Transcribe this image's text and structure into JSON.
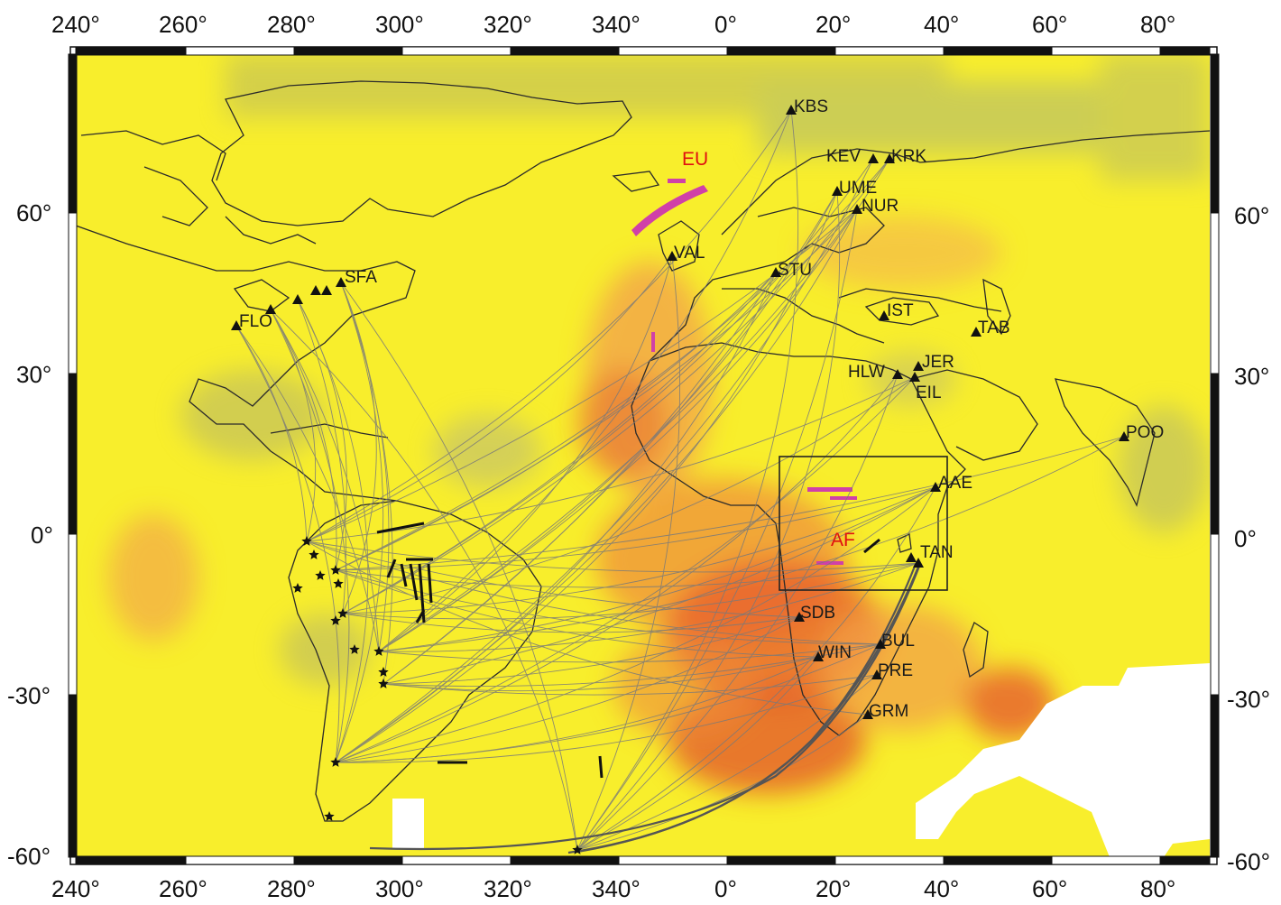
{
  "axes": {
    "top_ticks": [
      "240°",
      "260°",
      "280°",
      "300°",
      "320°",
      "340°",
      "0°",
      "20°",
      "40°",
      "60°",
      "80°"
    ],
    "bottom_ticks": [
      "240°",
      "260°",
      "280°",
      "300°",
      "320°",
      "340°",
      "0°",
      "20°",
      "40°",
      "60°",
      "80°"
    ],
    "left_ticks": [
      "60°",
      "30°",
      "0°",
      "-30°",
      "-60°"
    ],
    "right_ticks": [
      "60°",
      "30°",
      "0°",
      "-30°",
      "-60°"
    ]
  },
  "regions": {
    "eu_label": "EU",
    "af_label": "AF"
  },
  "stations": [
    {
      "code": "KBS"
    },
    {
      "code": "KEV"
    },
    {
      "code": "KRK"
    },
    {
      "code": "UME"
    },
    {
      "code": "NUR"
    },
    {
      "code": "VAL"
    },
    {
      "code": "STU"
    },
    {
      "code": "SFA"
    },
    {
      "code": "FLO"
    },
    {
      "code": "IST"
    },
    {
      "code": "TAB"
    },
    {
      "code": "JER"
    },
    {
      "code": "HLW"
    },
    {
      "code": "EIL"
    },
    {
      "code": "POO"
    },
    {
      "code": "AAE"
    },
    {
      "code": "TAN"
    },
    {
      "code": "SDB"
    },
    {
      "code": "BUL"
    },
    {
      "code": "WIN"
    },
    {
      "code": "PRE"
    },
    {
      "code": "GRM"
    }
  ],
  "colors": {
    "background_yellow": "#f8ee2c",
    "anomaly_orange": "#f09a3a",
    "anomaly_red": "#e24a2a",
    "anomaly_magenta": "#d040a8",
    "coast": "#2a2a2a",
    "ray": "#7a7a7a",
    "region_label": "#e01010"
  }
}
